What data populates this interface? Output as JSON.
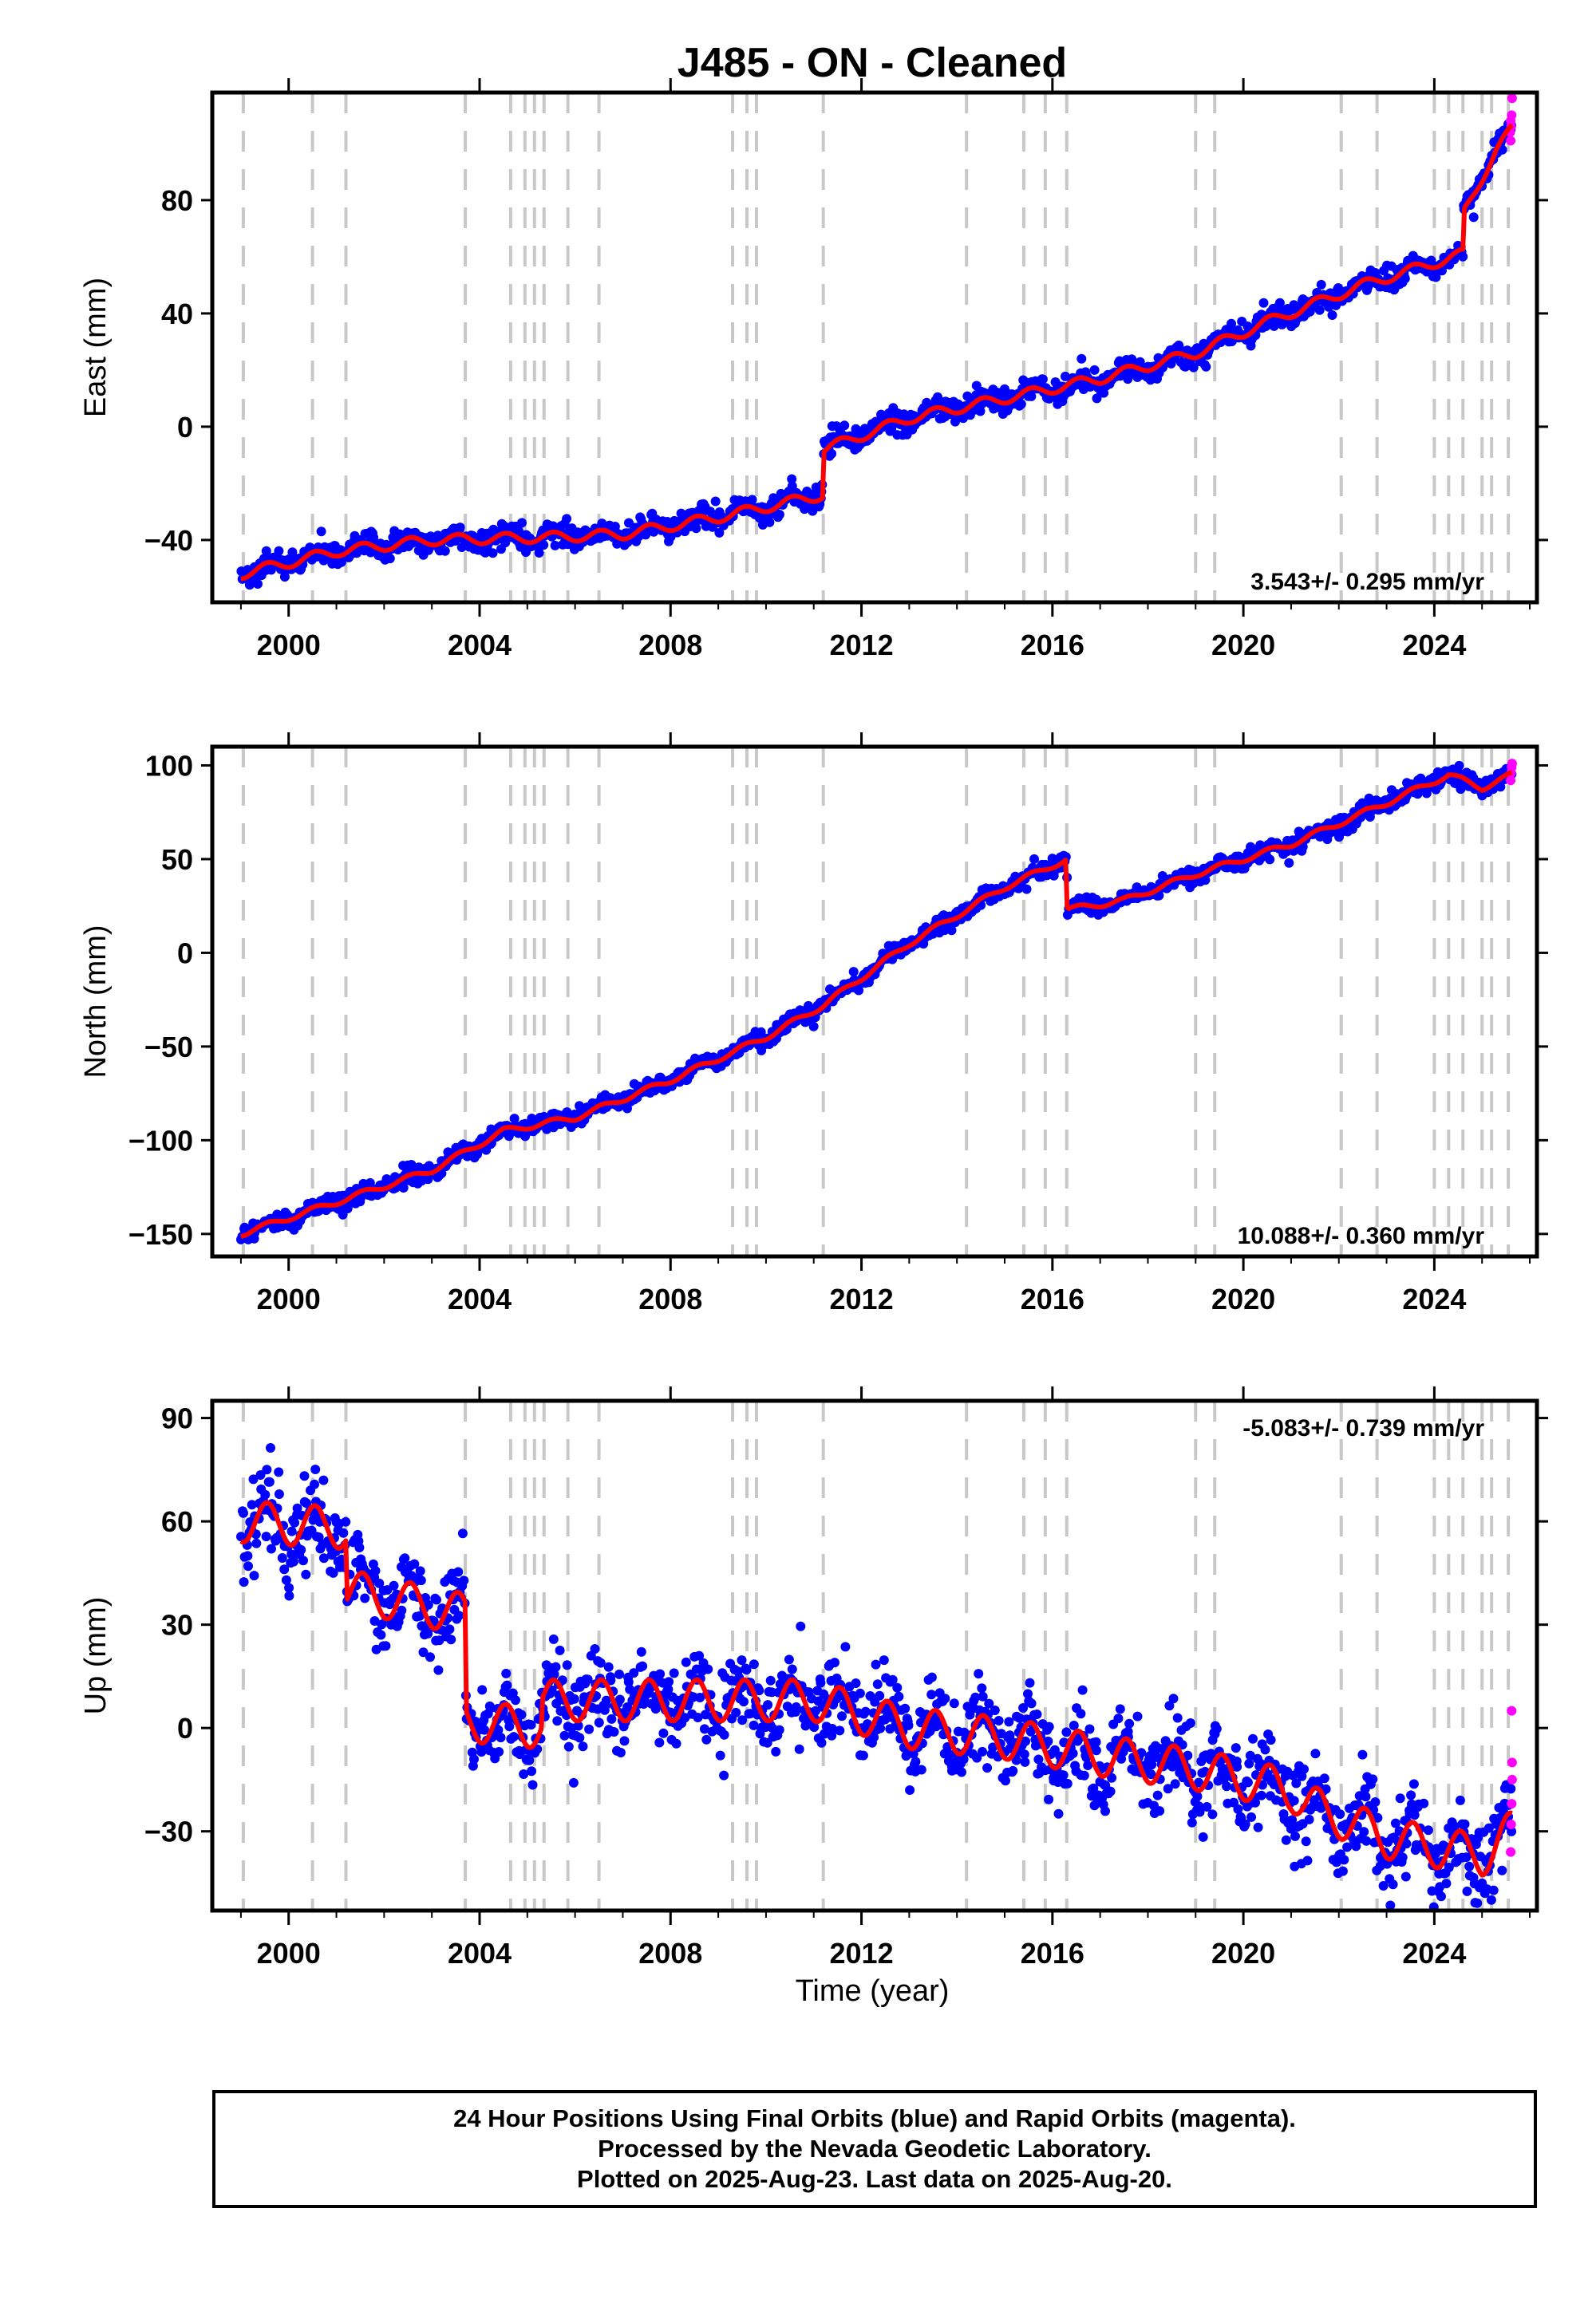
{
  "chart_data": {
    "type": "scatter",
    "title": "J485  - ON - Cleaned",
    "xlabel": "Time (year)",
    "xlim": [
      1998.4,
      2026.15
    ],
    "x_ticks": [
      2000,
      2004,
      2008,
      2012,
      2016,
      2020,
      2024
    ],
    "x_tick_labels": [
      "2000",
      "2004",
      "2008",
      "2012",
      "2016",
      "2020",
      "2024"
    ],
    "x_range_data": [
      1999.0,
      2025.63
    ],
    "step_lines": [
      1999.05,
      2000.5,
      2001.2,
      2003.7,
      2004.65,
      2004.95,
      2005.15,
      2005.35,
      2005.85,
      2006.5,
      2009.3,
      2009.6,
      2009.8,
      2011.2,
      2014.2,
      2015.4,
      2015.85,
      2016.3,
      2019.0,
      2019.4,
      2022.05,
      2022.8,
      2024.0,
      2024.3,
      2024.6,
      2025.0,
      2025.2,
      2025.55
    ],
    "series_styles": [
      {
        "role": "final-orbits",
        "color": "#0000ff"
      },
      {
        "role": "rapid-orbits",
        "color": "#ff00ff"
      },
      {
        "role": "model-fit",
        "color": "#ff0000"
      },
      {
        "role": "step-lines",
        "color": "#c8c8c8"
      }
    ],
    "panels": [
      {
        "name": "east",
        "ylabel": "East (mm)",
        "ylim": [
          -62,
          118
        ],
        "y_ticks": [
          -40,
          0,
          40,
          80
        ],
        "y_tick_labels": [
          "-40",
          "0",
          "40",
          "80"
        ],
        "rate_label": "3.543+/- 0.295 mm/yr",
        "rate_position": "bottom-right",
        "noise_mm": 2.0,
        "fit": [
          {
            "x": 1999.0,
            "y": -52.0
          },
          {
            "x": 2001.0,
            "y": -44.0
          },
          {
            "x": 2003.0,
            "y": -40.0
          },
          {
            "x": 2005.5,
            "y": -39.0
          },
          {
            "x": 2007.0,
            "y": -38.0
          },
          {
            "x": 2009.0,
            "y": -32.0
          },
          {
            "x": 2011.2,
            "y": -24.0
          },
          {
            "x": 2011.21,
            "y": -8.0
          },
          {
            "x": 2013.0,
            "y": 3.0
          },
          {
            "x": 2015.0,
            "y": 10.0
          },
          {
            "x": 2017.0,
            "y": 17.0
          },
          {
            "x": 2019.0,
            "y": 26.0
          },
          {
            "x": 2020.5,
            "y": 37.0
          },
          {
            "x": 2022.5,
            "y": 50.0
          },
          {
            "x": 2024.6,
            "y": 61.0
          },
          {
            "x": 2024.61,
            "y": 75.0
          },
          {
            "x": 2025.0,
            "y": 88.0
          },
          {
            "x": 2025.3,
            "y": 98.0
          },
          {
            "x": 2025.63,
            "y": 105.0
          }
        ],
        "season_amp_mm": 1.8,
        "rapid_points": [
          {
            "x": 2025.59,
            "y": 104.0
          },
          {
            "x": 2025.6,
            "y": 108.0
          },
          {
            "x": 2025.61,
            "y": 106.0
          },
          {
            "x": 2025.62,
            "y": 110.0
          },
          {
            "x": 2025.63,
            "y": 116.0
          },
          {
            "x": 2025.6,
            "y": 101.0
          }
        ]
      },
      {
        "name": "north",
        "ylabel": "North (mm)",
        "ylim": [
          -162,
          110
        ],
        "y_ticks": [
          -150,
          -100,
          -50,
          0,
          50,
          100
        ],
        "y_tick_labels": [
          "-150",
          "-100",
          "-50",
          "0",
          "50",
          "100"
        ],
        "rate_label": "10.088+/- 0.360 mm/yr",
        "rate_position": "bottom-right",
        "noise_mm": 2.2,
        "fit": [
          {
            "x": 1999.0,
            "y": -150.0
          },
          {
            "x": 2001.0,
            "y": -133.0
          },
          {
            "x": 2003.0,
            "y": -116.0
          },
          {
            "x": 2004.5,
            "y": -95.0
          },
          {
            "x": 2006.0,
            "y": -88.0
          },
          {
            "x": 2008.0,
            "y": -68.0
          },
          {
            "x": 2010.0,
            "y": -45.0
          },
          {
            "x": 2011.2,
            "y": -28.0
          },
          {
            "x": 2013.0,
            "y": 5.0
          },
          {
            "x": 2015.0,
            "y": 35.0
          },
          {
            "x": 2016.3,
            "y": 50.0
          },
          {
            "x": 2016.31,
            "y": 23.0
          },
          {
            "x": 2017.5,
            "y": 28.0
          },
          {
            "x": 2019.0,
            "y": 42.0
          },
          {
            "x": 2021.0,
            "y": 58.0
          },
          {
            "x": 2023.0,
            "y": 80.0
          },
          {
            "x": 2024.3,
            "y": 95.0
          },
          {
            "x": 2025.0,
            "y": 88.0
          },
          {
            "x": 2025.63,
            "y": 95.0
          }
        ],
        "season_amp_mm": 1.5,
        "rapid_points": [
          {
            "x": 2025.6,
            "y": 92.0
          },
          {
            "x": 2025.61,
            "y": 96.0
          },
          {
            "x": 2025.62,
            "y": 99.0
          },
          {
            "x": 2025.63,
            "y": 101.0
          }
        ]
      },
      {
        "name": "up",
        "ylabel": "Up (mm)",
        "ylim": [
          -53,
          95
        ],
        "y_ticks": [
          -30,
          0,
          30,
          60,
          90
        ],
        "y_tick_labels": [
          "-30",
          "0",
          "30",
          "60",
          "90"
        ],
        "rate_label": "-5.083+/- 0.739 mm/yr",
        "rate_position": "top-right",
        "noise_mm": 6.0,
        "fit": [
          {
            "x": 1999.0,
            "y": 60.0
          },
          {
            "x": 2001.2,
            "y": 58.0
          },
          {
            "x": 2001.21,
            "y": 40.0
          },
          {
            "x": 2003.0,
            "y": 35.0
          },
          {
            "x": 2003.7,
            "y": 33.0
          },
          {
            "x": 2003.71,
            "y": 2.0
          },
          {
            "x": 2005.3,
            "y": 0.0
          },
          {
            "x": 2005.31,
            "y": 8.0
          },
          {
            "x": 2009.5,
            "y": 8.0
          },
          {
            "x": 2011.0,
            "y": 8.0
          },
          {
            "x": 2013.0,
            "y": 0.0
          },
          {
            "x": 2015.0,
            "y": -3.0
          },
          {
            "x": 2017.0,
            "y": -8.0
          },
          {
            "x": 2019.0,
            "y": -12.0
          },
          {
            "x": 2021.0,
            "y": -18.0
          },
          {
            "x": 2021.3,
            "y": -22.0
          },
          {
            "x": 2022.0,
            "y": -26.0
          },
          {
            "x": 2023.0,
            "y": -32.0
          },
          {
            "x": 2025.0,
            "y": -37.0
          },
          {
            "x": 2025.63,
            "y": -30.0
          }
        ],
        "season_amp_mm": 6.0,
        "rapid_points": [
          {
            "x": 2025.6,
            "y": -36.0
          },
          {
            "x": 2025.61,
            "y": -28.0
          },
          {
            "x": 2025.62,
            "y": -22.0
          },
          {
            "x": 2025.63,
            "y": -10.0
          },
          {
            "x": 2025.63,
            "y": -15.0
          },
          {
            "x": 2025.62,
            "y": 5.0
          }
        ]
      }
    ]
  },
  "footer": {
    "line1": "24 Hour Positions Using Final Orbits (blue) and Rapid Orbits (magenta).",
    "line2": "Processed by the Nevada Geodetic Laboratory.",
    "line3": "Plotted on 2025-Aug-23. Last data on 2025-Aug-20."
  }
}
